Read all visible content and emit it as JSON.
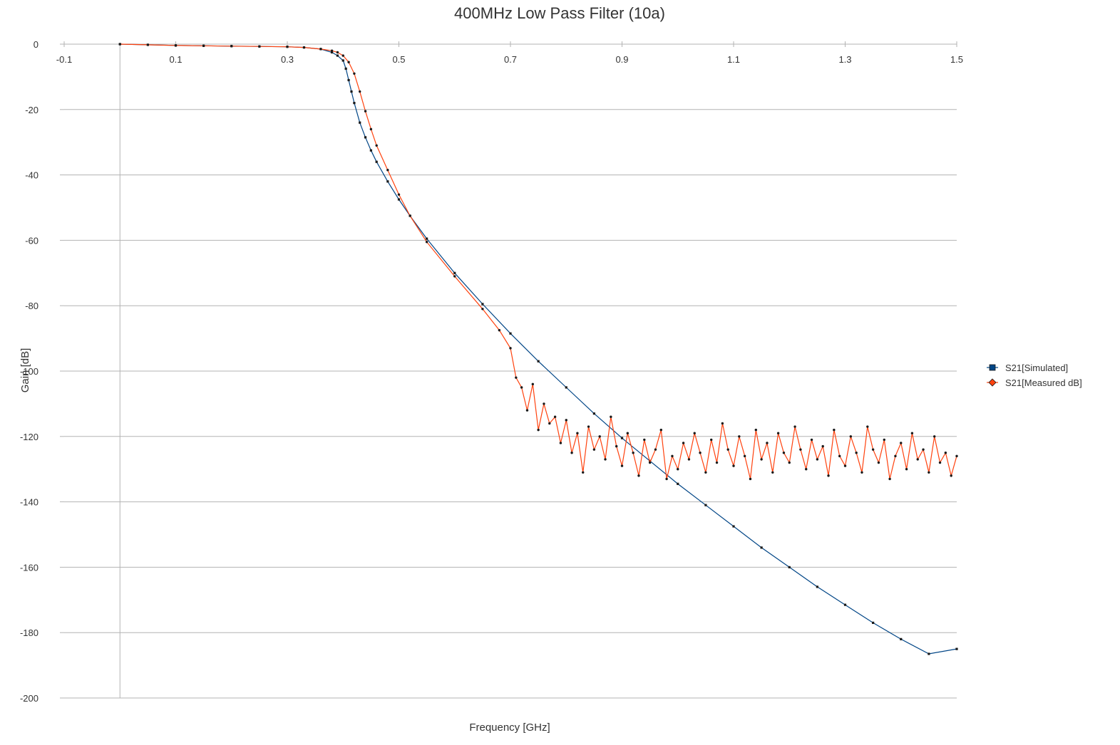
{
  "chart_data": {
    "type": "scatter",
    "title": "400MHz Low Pass Filter (10a)",
    "xlabel": "Frequency [GHz]",
    "ylabel": "Gain [dB]",
    "xlim": [
      -0.1,
      1.5
    ],
    "ylim": [
      -200,
      0
    ],
    "x_tick_labels": [
      "-0.1",
      "0.1",
      "0.3",
      "0.5",
      "0.7",
      "0.9",
      "1.1",
      "1.3",
      "1.5"
    ],
    "y_tick_labels": [
      "0",
      "-20",
      "-40",
      "-60",
      "-80",
      "-100",
      "-120",
      "-140",
      "-160",
      "-180",
      "-200"
    ],
    "x_ticks": [
      -0.1,
      0.1,
      0.3,
      0.5,
      0.7,
      0.9,
      1.1,
      1.3,
      1.5
    ],
    "y_ticks": [
      0,
      -20,
      -40,
      -60,
      -80,
      -100,
      -120,
      -140,
      -160,
      -180,
      -200
    ],
    "grid": "horizontal",
    "legend_position": "right",
    "series": [
      {
        "name": "S21[Simulated]",
        "color": "#004586",
        "marker": "square",
        "x": [
          0.0,
          0.05,
          0.1,
          0.15,
          0.2,
          0.25,
          0.3,
          0.33,
          0.36,
          0.38,
          0.39,
          0.4,
          0.405,
          0.41,
          0.415,
          0.42,
          0.43,
          0.44,
          0.45,
          0.46,
          0.48,
          0.5,
          0.52,
          0.55,
          0.6,
          0.65,
          0.7,
          0.75,
          0.8,
          0.85,
          0.9,
          0.95,
          1.0,
          1.05,
          1.1,
          1.15,
          1.2,
          1.25,
          1.3,
          1.35,
          1.4,
          1.45,
          1.5
        ],
        "y": [
          0.0,
          -0.2,
          -0.4,
          -0.5,
          -0.6,
          -0.7,
          -0.8,
          -1.0,
          -1.5,
          -2.5,
          -3.5,
          -5.0,
          -7.5,
          -11.0,
          -14.5,
          -18.0,
          -24.0,
          -28.5,
          -32.5,
          -36.0,
          -42.0,
          -47.5,
          -52.5,
          -59.5,
          -70.0,
          -79.5,
          -88.5,
          -97.0,
          -105.0,
          -113.0,
          -120.5,
          -127.5,
          -134.5,
          -141.0,
          -147.5,
          -154.0,
          -160.0,
          -166.0,
          -171.5,
          -177.0,
          -182.0,
          -186.5,
          -185.0
        ]
      },
      {
        "name": "S21[Measured dB]",
        "color": "#ff420e",
        "marker": "diamond",
        "x": [
          0.0,
          0.05,
          0.1,
          0.15,
          0.2,
          0.25,
          0.3,
          0.33,
          0.36,
          0.38,
          0.39,
          0.4,
          0.41,
          0.42,
          0.43,
          0.44,
          0.45,
          0.46,
          0.48,
          0.5,
          0.52,
          0.55,
          0.6,
          0.65,
          0.68,
          0.7,
          0.71,
          0.72,
          0.73,
          0.74,
          0.75,
          0.76,
          0.77,
          0.78,
          0.79,
          0.8,
          0.81,
          0.82,
          0.83,
          0.84,
          0.85,
          0.86,
          0.87,
          0.88,
          0.89,
          0.9,
          0.91,
          0.92,
          0.93,
          0.94,
          0.95,
          0.96,
          0.97,
          0.98,
          0.99,
          1.0,
          1.01,
          1.02,
          1.03,
          1.04,
          1.05,
          1.06,
          1.07,
          1.08,
          1.09,
          1.1,
          1.11,
          1.12,
          1.13,
          1.14,
          1.15,
          1.16,
          1.17,
          1.18,
          1.19,
          1.2,
          1.21,
          1.22,
          1.23,
          1.24,
          1.25,
          1.26,
          1.27,
          1.28,
          1.29,
          1.3,
          1.31,
          1.32,
          1.33,
          1.34,
          1.35,
          1.36,
          1.37,
          1.38,
          1.39,
          1.4,
          1.41,
          1.42,
          1.43,
          1.44,
          1.45,
          1.46,
          1.47,
          1.48,
          1.49,
          1.5
        ],
        "y": [
          0.0,
          -0.2,
          -0.4,
          -0.5,
          -0.6,
          -0.7,
          -0.8,
          -1.0,
          -1.5,
          -2.0,
          -2.5,
          -3.5,
          -5.5,
          -9.0,
          -14.5,
          -20.5,
          -26.0,
          -31.0,
          -38.5,
          -46.0,
          -52.5,
          -60.5,
          -71.0,
          -81.0,
          -87.5,
          -93.0,
          -102.0,
          -105.0,
          -112.0,
          -104.0,
          -118.0,
          -110.0,
          -116.0,
          -114.0,
          -122.0,
          -115.0,
          -125.0,
          -119.0,
          -131.0,
          -117.0,
          -124.0,
          -120.0,
          -127.0,
          -114.0,
          -123.0,
          -129.0,
          -119.0,
          -125.0,
          -132.0,
          -121.0,
          -128.0,
          -124.0,
          -118.0,
          -133.0,
          -126.0,
          -130.0,
          -122.0,
          -127.0,
          -119.0,
          -125.0,
          -131.0,
          -121.0,
          -128.0,
          -116.0,
          -124.0,
          -129.0,
          -120.0,
          -126.0,
          -133.0,
          -118.0,
          -127.0,
          -122.0,
          -131.0,
          -119.0,
          -125.0,
          -128.0,
          -117.0,
          -124.0,
          -130.0,
          -121.0,
          -127.0,
          -123.0,
          -132.0,
          -118.0,
          -126.0,
          -129.0,
          -120.0,
          -125.0,
          -131.0,
          -117.0,
          -124.0,
          -128.0,
          -121.0,
          -133.0,
          -126.0,
          -122.0,
          -130.0,
          -119.0,
          -127.0,
          -124.0,
          -131.0,
          -120.0,
          -128.0,
          -125.0,
          -132.0,
          -126.0
        ]
      }
    ]
  }
}
